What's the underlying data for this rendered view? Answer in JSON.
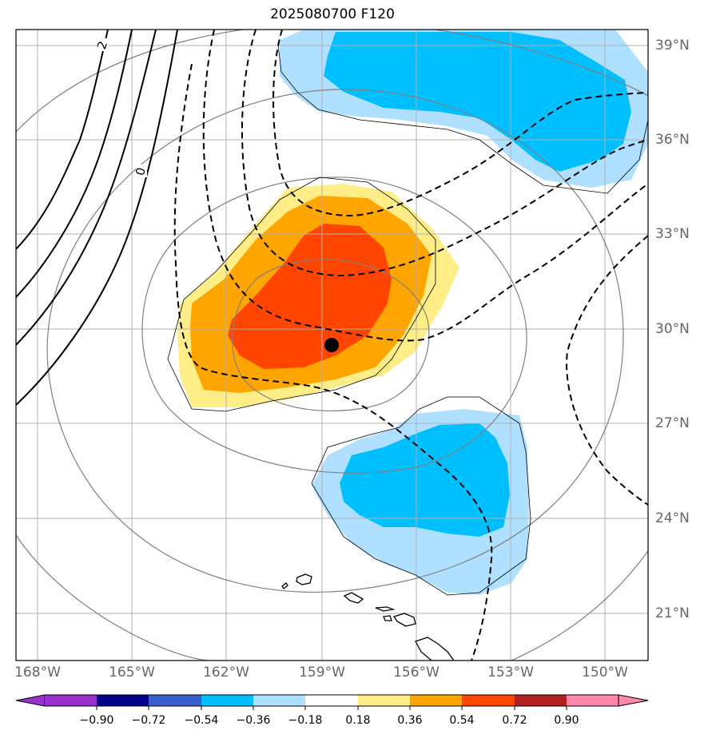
{
  "title": "2025080700 F120",
  "longitude_labels": [
    "168°W",
    "165°W",
    "162°W",
    "159°W",
    "156°W",
    "153°W",
    "150°W"
  ],
  "latitude_labels": [
    "39°N",
    "36°N",
    "33°N",
    "30°N",
    "27°N",
    "24°N",
    "21°N"
  ],
  "contour_labels": [
    "2",
    "0"
  ],
  "colorbar": {
    "ticks": [
      "−0.90",
      "−0.72",
      "−0.54",
      "−0.36",
      "−0.18",
      "0.18",
      "0.36",
      "0.54",
      "0.72",
      "0.90"
    ],
    "colors": [
      "#9932CC",
      "#00008B",
      "#3A5FCD",
      "#00BFFF",
      "#B0E0FF",
      "#FFFFFF",
      "#FFEE88",
      "#FFA500",
      "#FF4500",
      "#B22222",
      "#FF88AA"
    ]
  },
  "map": {
    "fill_colors": {
      "light_blue": "#B0E0FF",
      "blue": "#00BFFF",
      "yellow": "#FFEE88",
      "orange": "#FFA500",
      "red_orange": "#FF4500"
    },
    "storm_center": "black-dot"
  }
}
